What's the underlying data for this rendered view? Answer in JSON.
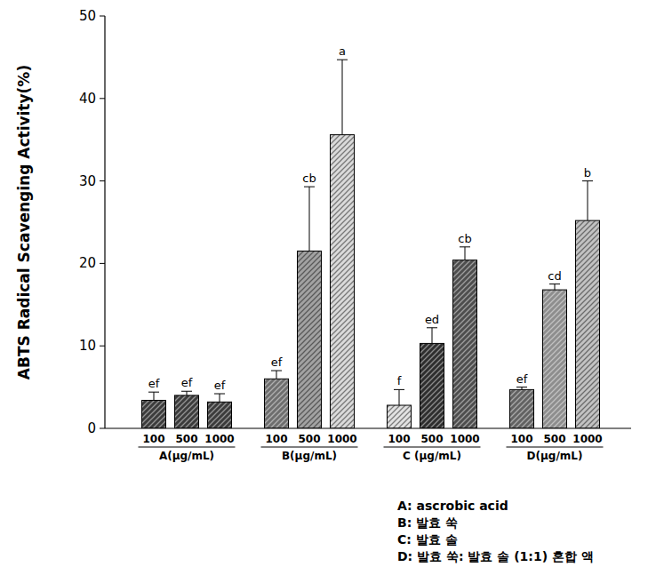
{
  "chart_data": {
    "type": "bar",
    "y_label": "ABTS Radical Scavenging Activity(%)",
    "categories": [
      "100",
      "500",
      "1000",
      "100",
      "500",
      "1000",
      "100",
      "500",
      "1000",
      "100",
      "500",
      "1000"
    ],
    "groups": [
      "A(μg/mL)",
      "B(μg/mL)",
      "C (μg/mL)",
      "D(μg/mL)"
    ],
    "values": [
      3.4,
      4.0,
      3.2,
      6.0,
      21.5,
      35.6,
      2.8,
      10.3,
      20.4,
      4.7,
      16.8,
      25.2
    ],
    "errors": [
      1.0,
      0.5,
      1.0,
      1.0,
      7.8,
      9.1,
      1.9,
      1.9,
      1.6,
      0.3,
      0.7,
      4.8
    ],
    "annotations": [
      "ef",
      "ef",
      "ef",
      "ef",
      "cb",
      "a",
      "f",
      "ed",
      "cb",
      "ef",
      "cd",
      "b"
    ],
    "colors": [
      "#3c3c3c",
      "#3c3c3c",
      "#3c3c3c",
      "#6e6e6e",
      "#a2a2a2",
      "#dadada",
      "#e2e2e2",
      "#2e2e2e",
      "#4e4e4e",
      "#626262",
      "#8e8e8e",
      "#c2c2c2"
    ],
    "ylim": [
      0,
      50
    ],
    "yticks": [
      0,
      10,
      20,
      30,
      40,
      50
    ],
    "grid": false,
    "footnotes": [
      "A: ascrobic acid",
      "B: 발효 쑥",
      "C: 발효 솔",
      "D: 발효 쑥: 발효 솔 (1:1) 혼합 액"
    ]
  }
}
